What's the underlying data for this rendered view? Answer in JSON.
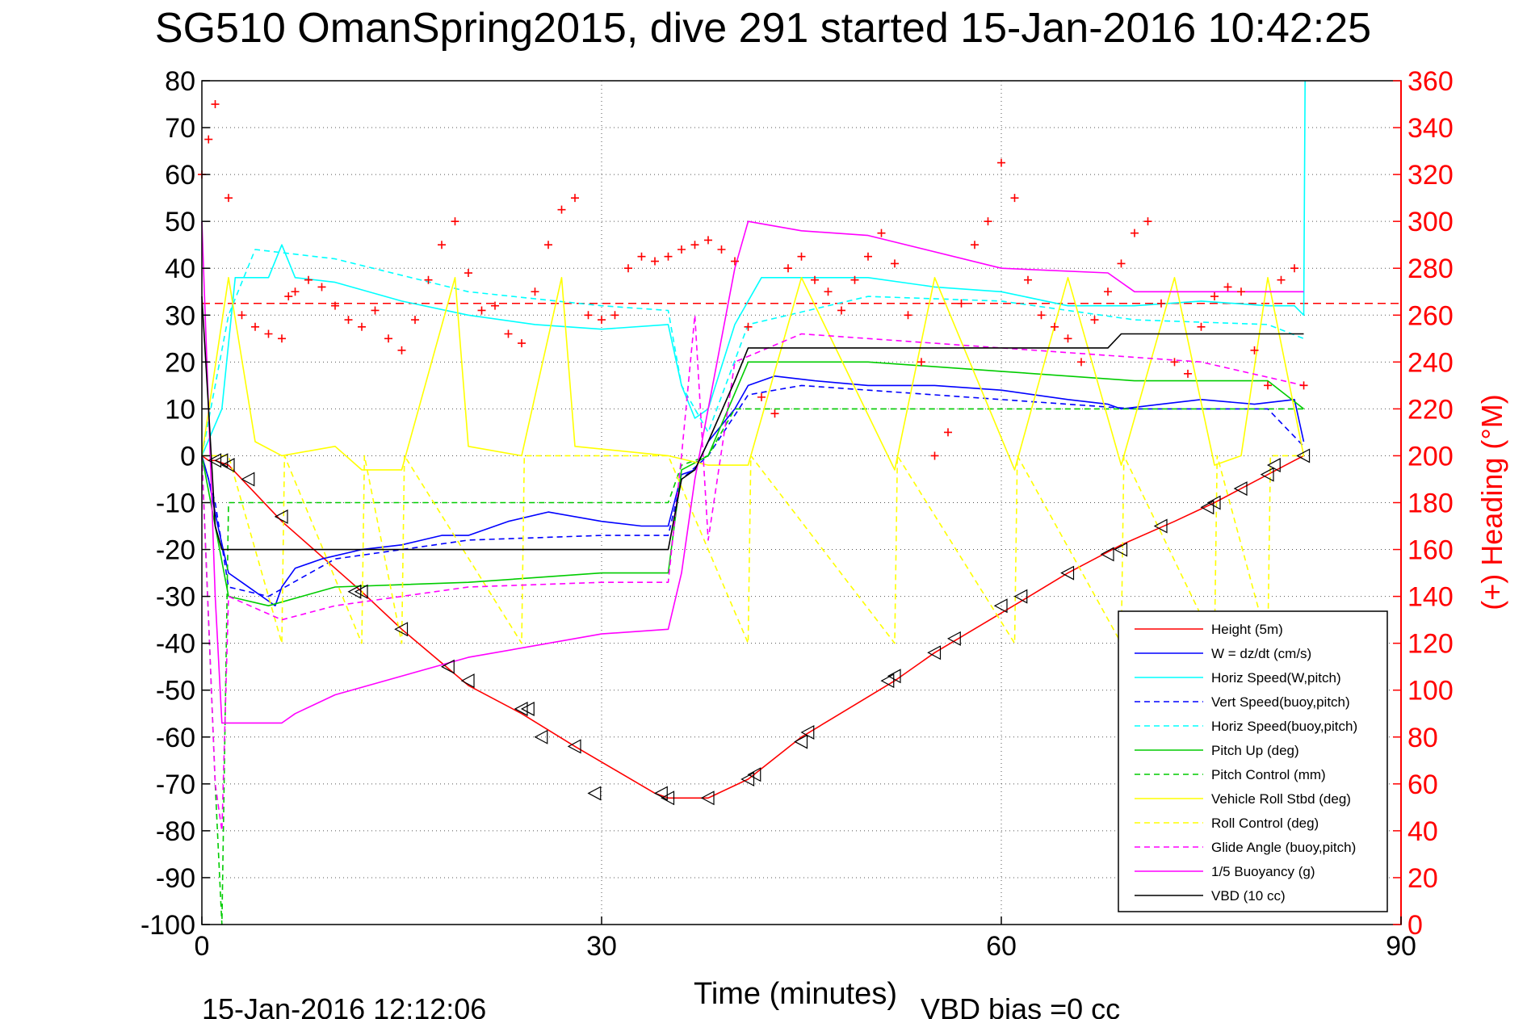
{
  "chart_data": {
    "type": "line",
    "title": "SG510 OmanSpring2015, dive 291 started 15-Jan-2016 10:42:25",
    "xlabel": "Time (minutes)",
    "ylabel_right": "(+) Heading (°M)",
    "footer_left": "15-Jan-2016 12:12:06",
    "footer_right": "VBD bias =0 cc",
    "xlim": [
      0,
      90
    ],
    "ylim_left": [
      -100,
      80
    ],
    "ylim_right": [
      0,
      360
    ],
    "x_ticks": [
      "0",
      "30",
      "60",
      "90"
    ],
    "y_ticks_left": [
      "80",
      "70",
      "60",
      "50",
      "40",
      "30",
      "20",
      "10",
      "0",
      "-10",
      "-20",
      "-30",
      "-40",
      "-50",
      "-60",
      "-70",
      "-80",
      "-90",
      "-100"
    ],
    "y_ticks_right": [
      "360",
      "340",
      "320",
      "300",
      "280",
      "260",
      "240",
      "220",
      "200",
      "180",
      "160",
      "140",
      "120",
      "100",
      "80",
      "60",
      "40",
      "20",
      "0"
    ],
    "grid": true,
    "legend_placement": "bottom-right",
    "colors": {
      "left_axis": "#000000",
      "right_axis": "#ff0000",
      "heading_ref_line": "#ff0000"
    },
    "heading_ref_line": 265,
    "series": [
      {
        "name": "Height (5m)",
        "color": "#ff0000",
        "style": "solid",
        "axis": "left",
        "x": [
          0.0,
          0.5,
          1.0,
          2.0,
          6.0,
          12.0,
          15.0,
          20.0,
          24.0,
          28.0,
          34.0,
          35.0,
          36.0,
          38.0,
          41.0,
          45.0,
          52.0,
          55.0,
          61.5,
          65.0,
          69.0,
          73.0,
          76.0,
          78.0,
          80.0,
          82.0,
          82.7
        ],
        "y": [
          0,
          -1,
          -1,
          -2,
          -14,
          -29,
          -37,
          -49,
          -55,
          -62,
          -72,
          -73,
          -73,
          -73,
          -69,
          -60,
          -48,
          -42,
          -31,
          -25,
          -19,
          -14,
          -10,
          -7,
          -4,
          -1,
          0
        ]
      },
      {
        "name": "W = dz/dt (cm/s)",
        "color": "#0000ff",
        "style": "solid",
        "axis": "left",
        "x": [
          0.0,
          0.5,
          1.2,
          2.0,
          3.0,
          4.0,
          5.0,
          5.5,
          6.0,
          7.0,
          9.0,
          12.0,
          15.0,
          18.0,
          20.0,
          23.0,
          26.0,
          30.0,
          33.0,
          35.0,
          36.0,
          37.0,
          38.0,
          40.0,
          41.0,
          43.0,
          46.0,
          50.0,
          52.0,
          55.0,
          60.0,
          65.0,
          68.0,
          69.0,
          72.0,
          75.0,
          79.0,
          82.0,
          82.7
        ],
        "y": [
          0,
          -5,
          -15,
          -25,
          -27,
          -29,
          -31,
          -32,
          -28,
          -24,
          -22,
          -20,
          -19,
          -17,
          -17,
          -14,
          -12,
          -14,
          -15,
          -15,
          -4,
          -3,
          3,
          10,
          15,
          17,
          16,
          15,
          15,
          15,
          14,
          12,
          11,
          10,
          11,
          12,
          11,
          12,
          3
        ]
      },
      {
        "name": "Horiz Speed(W,pitch)",
        "color": "#00ffff",
        "style": "solid",
        "axis": "left",
        "x": [
          0.0,
          1.5,
          2.5,
          5.0,
          6.0,
          7.0,
          10.0,
          15.0,
          20.0,
          25.0,
          30.0,
          35.0,
          36.0,
          37.0,
          38.0,
          40.0,
          42.0,
          50.0,
          55.0,
          60.0,
          65.0,
          70.0,
          75.0,
          80.0,
          82.0,
          82.7,
          82.8
        ],
        "y": [
          0,
          10,
          38,
          38,
          45,
          38,
          37,
          33,
          30,
          28,
          27,
          28,
          15,
          8,
          10,
          28,
          38,
          38,
          36,
          35,
          32,
          32,
          33,
          32,
          32,
          30,
          80
        ]
      },
      {
        "name": "Vert Speed(buoy,pitch)",
        "color": "#0000ff",
        "style": "dashed",
        "axis": "left",
        "x": [
          0.0,
          1.0,
          2.0,
          5.0,
          10.0,
          15.0,
          20.0,
          30.0,
          35.0,
          36.0,
          38.0,
          41.0,
          45.0,
          55.0,
          65.0,
          70.0,
          80.0,
          82.7
        ],
        "y": [
          0,
          -10,
          -28,
          -30,
          -22,
          -20,
          -18,
          -17,
          -17,
          -5,
          0,
          13,
          15,
          13,
          11,
          10,
          10,
          2
        ]
      },
      {
        "name": "Horiz Speed(buoy,pitch)",
        "color": "#00ffff",
        "style": "dashed",
        "axis": "left",
        "x": [
          0.0,
          2.0,
          4.0,
          10.0,
          20.0,
          30.0,
          35.0,
          36.0,
          38.0,
          41.0,
          50.0,
          60.0,
          70.0,
          80.0,
          82.7
        ],
        "y": [
          0,
          30,
          44,
          42,
          35,
          32,
          31,
          15,
          5,
          28,
          34,
          33,
          29,
          28,
          25
        ]
      },
      {
        "name": "Pitch Up (deg)",
        "color": "#00cc00",
        "style": "solid",
        "axis": "left",
        "x": [
          0.0,
          1.0,
          2.0,
          5.0,
          10.0,
          20.0,
          30.0,
          35.0,
          36.0,
          38.0,
          41.0,
          50.0,
          60.0,
          70.0,
          80.0,
          82.7
        ],
        "y": [
          0,
          -15,
          -30,
          -32,
          -28,
          -27,
          -25,
          -25,
          -3,
          0,
          20,
          20,
          18,
          16,
          16,
          10
        ]
      },
      {
        "name": "Pitch Control (mm)",
        "color": "#00cc00",
        "style": "dashed",
        "axis": "left",
        "x": [
          0.0,
          1.0,
          1.5,
          2.0,
          10.0,
          30.0,
          35.0,
          36.0,
          38.0,
          40.0,
          82.7
        ],
        "y": [
          0,
          -70,
          -100,
          -10,
          -10,
          -10,
          -10,
          -2,
          0,
          10,
          10
        ]
      },
      {
        "name": "Vehicle Roll Stbd (deg)",
        "color": "#ffff00",
        "style": "solid",
        "axis": "left",
        "x": [
          0.0,
          2.0,
          4.0,
          6.0,
          10.0,
          12.0,
          15.0,
          19.0,
          20.0,
          24.0,
          27.0,
          28.0,
          35.0,
          38.0,
          41.0,
          45.0,
          52.0,
          55.0,
          61.0,
          65.0,
          69.0,
          73.0,
          76.0,
          78.0,
          80.0,
          82.7
        ],
        "y": [
          0,
          38,
          3,
          0,
          2,
          -3,
          -3,
          38,
          2,
          0,
          38,
          2,
          0,
          -2,
          -2,
          38,
          -3,
          38,
          -3,
          38,
          -2,
          38,
          -2,
          0,
          38,
          0
        ]
      },
      {
        "name": "Roll Control (deg)",
        "color": "#ffff00",
        "style": "dashed",
        "axis": "left",
        "x": [
          0.0,
          2.0,
          6.0,
          6.2,
          12.0,
          12.2,
          15.0,
          15.2,
          24.0,
          24.2,
          35.0,
          41.0,
          41.2,
          52.0,
          52.2,
          61.0,
          61.2,
          69.0,
          69.2,
          76.0,
          76.2,
          80.0,
          80.2,
          82.7
        ],
        "y": [
          0,
          0,
          -40,
          0,
          -40,
          0,
          -40,
          0,
          -40,
          0,
          0,
          -40,
          0,
          -40,
          0,
          -40,
          0,
          -40,
          0,
          -40,
          0,
          -40,
          0,
          0
        ]
      },
      {
        "name": "Glide Angle (buoy,pitch)",
        "color": "#ff00ff",
        "style": "dashed",
        "axis": "left",
        "x": [
          0.0,
          1.0,
          1.5,
          2.0,
          6.0,
          10.0,
          20.0,
          30.0,
          35.0,
          36.0,
          37.0,
          38.0,
          40.0,
          45.0,
          55.0,
          65.0,
          75.0,
          82.7
        ],
        "y": [
          0,
          -70,
          -80,
          -30,
          -35,
          -32,
          -28,
          -27,
          -27,
          0,
          30,
          -18,
          20,
          26,
          24,
          22,
          20,
          15
        ]
      },
      {
        "name": "1/5 Buoyancy (g)",
        "color": "#ff00ff",
        "style": "solid",
        "axis": "left",
        "x": [
          0.0,
          1.0,
          1.5,
          2.0,
          6.0,
          7.0,
          10.0,
          20.0,
          30.0,
          35.0,
          36.0,
          37.0,
          40.0,
          41.0,
          45.0,
          50.0,
          60.0,
          68.0,
          70.0,
          75.0,
          82.7
        ],
        "y": [
          50,
          -30,
          -57,
          -57,
          -57,
          -55,
          -51,
          -43,
          -38,
          -37,
          -25,
          -5,
          40,
          50,
          48,
          47,
          40,
          39,
          35,
          35,
          35
        ]
      },
      {
        "name": "VBD (10 cc)",
        "color": "#000000",
        "style": "solid",
        "axis": "left",
        "x": [
          0.0,
          0.5,
          1.0,
          1.5,
          2.0,
          10.0,
          20.0,
          30.0,
          35.0,
          36.0,
          37.0,
          38.0,
          40.0,
          41.0,
          45.0,
          68.0,
          69.0,
          82.7
        ],
        "y": [
          34,
          10,
          -15,
          -20,
          -20,
          -20,
          -20,
          -20,
          -20,
          -5,
          -3,
          3,
          16,
          23,
          23,
          23,
          26,
          26
        ]
      },
      {
        "name": "Heading",
        "color": "#ff0000",
        "style": "plus-markers",
        "axis": "right",
        "x": [
          0.0,
          0.5,
          1.0,
          2.0,
          3.0,
          4.0,
          5.0,
          6.0,
          6.5,
          7.0,
          8.0,
          9.0,
          10.0,
          11.0,
          12.0,
          13.0,
          14.0,
          15.0,
          16.0,
          17.0,
          18.0,
          19.0,
          20.0,
          21.0,
          22.0,
          23.0,
          24.0,
          25.0,
          26.0,
          27.0,
          28.0,
          29.0,
          30.0,
          31.0,
          32.0,
          33.0,
          34.0,
          35.0,
          36.0,
          37.0,
          38.0,
          39.0,
          40.0,
          41.0,
          42.0,
          43.0,
          44.0,
          45.0,
          46.0,
          47.0,
          48.0,
          49.0,
          50.0,
          51.0,
          52.0,
          53.0,
          54.0,
          55.0,
          56.0,
          57.0,
          58.0,
          59.0,
          60.0,
          61.0,
          62.0,
          63.0,
          64.0,
          65.0,
          66.0,
          67.0,
          68.0,
          69.0,
          70.0,
          71.0,
          72.0,
          73.0,
          74.0,
          75.0,
          76.0,
          77.0,
          78.0,
          79.0,
          80.0,
          81.0,
          82.0,
          82.7
        ],
        "y": [
          320,
          335,
          350,
          310,
          260,
          255,
          252,
          250,
          268,
          270,
          275,
          272,
          264,
          258,
          255,
          262,
          250,
          245,
          258,
          275,
          290,
          300,
          278,
          262,
          264,
          252,
          248,
          270,
          290,
          305,
          310,
          260,
          258,
          260,
          280,
          285,
          283,
          285,
          288,
          290,
          292,
          288,
          283,
          255,
          225,
          218,
          280,
          285,
          275,
          270,
          262,
          275,
          285,
          295,
          282,
          260,
          240,
          200,
          210,
          265,
          290,
          300,
          325,
          310,
          275,
          260,
          255,
          250,
          240,
          258,
          270,
          282,
          295,
          300,
          265,
          240,
          235,
          255,
          268,
          272,
          270,
          245,
          230,
          275,
          280,
          230
        ]
      },
      {
        "name": "Height markers",
        "color": "#000000",
        "style": "triangle-markers",
        "axis": "left",
        "x": [
          1.0,
          1.5,
          2.0,
          3.5,
          6.0,
          11.5,
          12.0,
          15.0,
          18.5,
          20.0,
          24.0,
          24.5,
          25.5,
          28.0,
          29.5,
          34.5,
          35.0,
          38.0,
          41.0,
          41.5,
          45.0,
          45.5,
          51.5,
          52.0,
          55.0,
          56.5,
          60.0,
          61.5,
          65.0,
          68.0,
          69.0,
          72.0,
          75.5,
          76.0,
          78.0,
          80.0,
          80.5,
          82.7
        ],
        "y": [
          -1,
          -1,
          -2,
          -5,
          -13,
          -29,
          -29,
          -37,
          -45,
          -48,
          -54,
          -54,
          -60,
          -62,
          -72,
          -72,
          -73,
          -73,
          -69,
          -68,
          -61,
          -59,
          -48,
          -47,
          -42,
          -39,
          -32,
          -30,
          -25,
          -21,
          -20,
          -15,
          -11,
          -10,
          -7,
          -4,
          -2,
          0
        ]
      }
    ]
  }
}
